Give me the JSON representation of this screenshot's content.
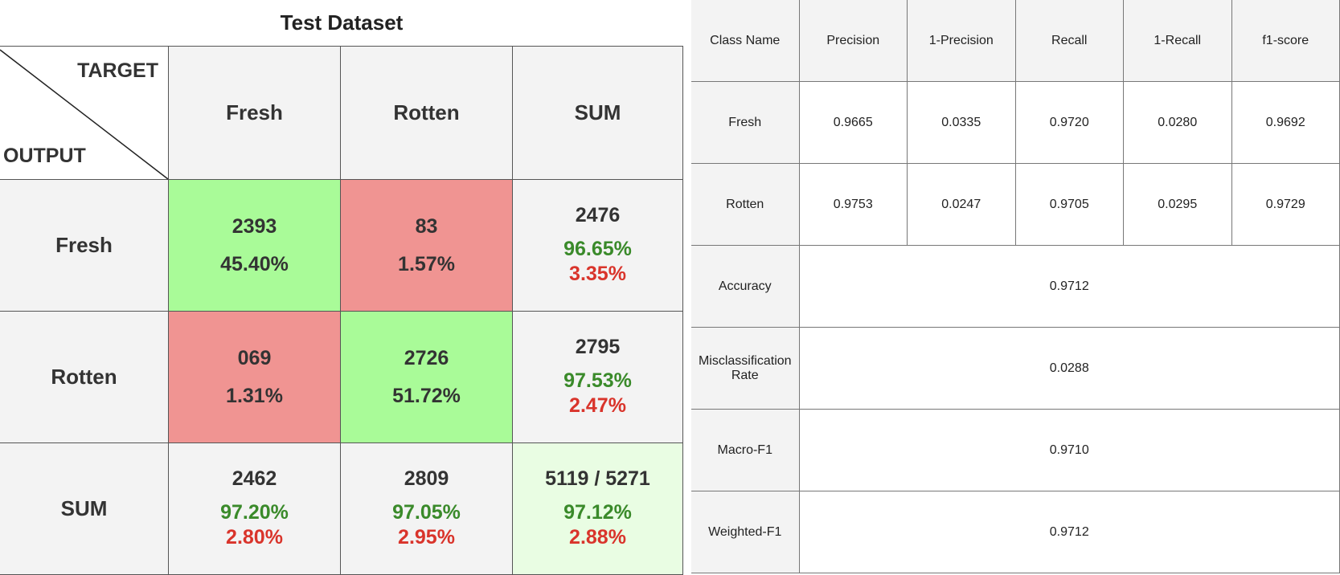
{
  "chart_data": [
    {
      "type": "table",
      "title": "Test Dataset",
      "corner": {
        "target_label": "TARGET",
        "output_label": "OUTPUT"
      },
      "columns": [
        "Fresh",
        "Rotten",
        "SUM"
      ],
      "rows": [
        {
          "label": "Fresh",
          "cells": [
            {
              "count": "2393",
              "pct": "45.40%",
              "kind": "correct"
            },
            {
              "count": "83",
              "pct": "1.57%",
              "kind": "error"
            },
            {
              "count": "2476",
              "good": "96.65%",
              "bad": "3.35%",
              "kind": "sum"
            }
          ]
        },
        {
          "label": "Rotten",
          "cells": [
            {
              "count": "069",
              "pct": "1.31%",
              "kind": "error"
            },
            {
              "count": "2726",
              "pct": "51.72%",
              "kind": "correct"
            },
            {
              "count": "2795",
              "good": "97.53%",
              "bad": "2.47%",
              "kind": "sum"
            }
          ]
        },
        {
          "label": "SUM",
          "cells": [
            {
              "count": "2462",
              "good": "97.20%",
              "bad": "2.80%",
              "kind": "sum"
            },
            {
              "count": "2809",
              "good": "97.05%",
              "bad": "2.95%",
              "kind": "sum"
            },
            {
              "count": "5119 / 5271",
              "good": "97.12%",
              "bad": "2.88%",
              "kind": "total"
            }
          ]
        }
      ],
      "colors": {
        "correct": "#a9fb98",
        "error": "#f09492",
        "total": "#e9fde3",
        "good_text": "#3a8a2a",
        "bad_text": "#d9342b"
      }
    },
    {
      "type": "table",
      "headers": [
        "Class Name",
        "Precision",
        "1-Precision",
        "Recall",
        "1-Recall",
        "f1-score"
      ],
      "class_rows": [
        {
          "name": "Fresh",
          "values": [
            "0.9665",
            "0.0335",
            "0.9720",
            "0.0280",
            "0.9692"
          ]
        },
        {
          "name": "Rotten",
          "values": [
            "0.9753",
            "0.0247",
            "0.9705",
            "0.0295",
            "0.9729"
          ]
        }
      ],
      "summary_rows": [
        {
          "name": "Accuracy",
          "value": "0.9712"
        },
        {
          "name": "Misclassification Rate",
          "value": "0.0288"
        },
        {
          "name": "Macro-F1",
          "value": "0.9710"
        },
        {
          "name": "Weighted-F1",
          "value": "0.9712"
        }
      ]
    }
  ]
}
